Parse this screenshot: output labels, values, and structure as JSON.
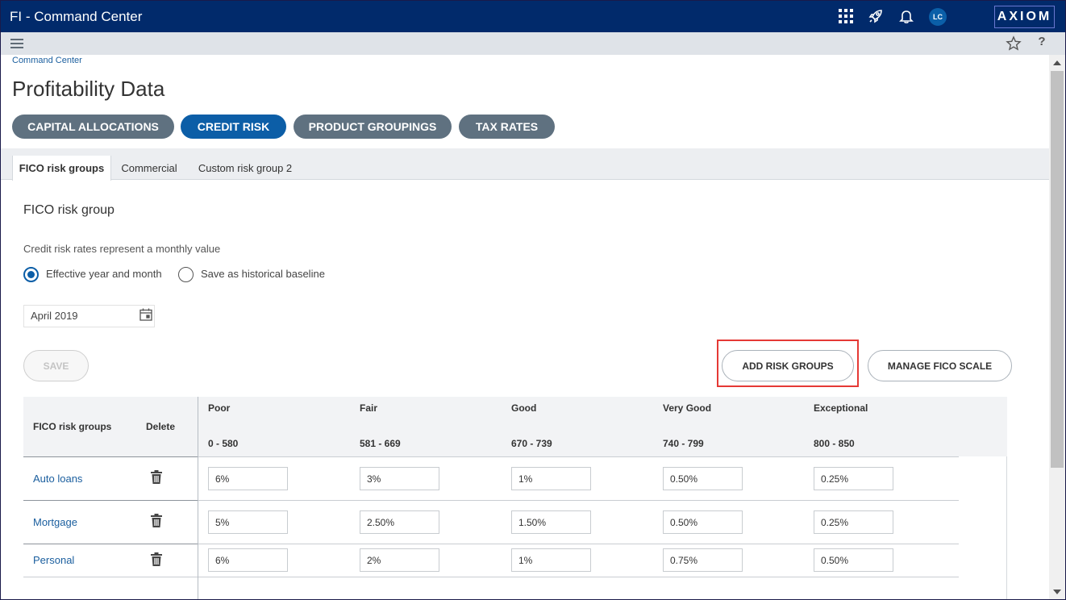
{
  "header": {
    "app_title": "FI - Command Center",
    "avatar_initials": "LC",
    "logo_text": "AXIOM",
    "icons": [
      "apps-grid-icon",
      "rocket-icon",
      "bell-icon"
    ]
  },
  "subbar": {
    "icons": [
      "hamburger-menu-icon",
      "star-icon",
      "help-icon"
    ],
    "help_glyph": "?"
  },
  "breadcrumb": "Command Center",
  "page_title": "Profitability Data",
  "pills": [
    {
      "label": "CAPITAL ALLOCATIONS",
      "active": false
    },
    {
      "label": "CREDIT RISK",
      "active": true
    },
    {
      "label": "PRODUCT GROUPINGS",
      "active": false
    },
    {
      "label": "TAX RATES",
      "active": false
    }
  ],
  "tabs": [
    {
      "label": "FICO risk groups",
      "active": true
    },
    {
      "label": "Commercial",
      "active": false
    },
    {
      "label": "Custom risk group 2",
      "active": false
    }
  ],
  "section": {
    "title": "FICO risk group",
    "note": "Credit risk rates represent a monthly value",
    "radio_options": [
      {
        "label": "Effective year and month",
        "checked": true
      },
      {
        "label": "Save as historical baseline",
        "checked": false
      }
    ],
    "date_value": "April 2019"
  },
  "buttons": {
    "save": "SAVE",
    "add_risk_groups": "ADD RISK GROUPS",
    "manage_fico_scale": "MANAGE FICO SCALE"
  },
  "table": {
    "col_group": "FICO risk groups",
    "col_delete": "Delete",
    "columns": [
      {
        "name": "Poor",
        "range": "0 - 580"
      },
      {
        "name": "Fair",
        "range": "581 - 669"
      },
      {
        "name": "Good",
        "range": "670 - 739"
      },
      {
        "name": "Very Good",
        "range": "740 - 799"
      },
      {
        "name": "Exceptional",
        "range": "800 - 850"
      }
    ],
    "rows": [
      {
        "label": "Auto loans",
        "values": [
          "6%",
          "3%",
          "1%",
          "0.50%",
          "0.25%"
        ]
      },
      {
        "label": "Mortgage",
        "values": [
          "5%",
          "2.50%",
          "1.50%",
          "0.50%",
          "0.25%"
        ]
      },
      {
        "label": "Personal",
        "values": [
          "6%",
          "2%",
          "1%",
          "0.75%",
          "0.50%"
        ]
      }
    ]
  },
  "colors": {
    "header_bg": "#012a6b",
    "active_pill": "#0c5ea7",
    "pill": "#5f7180",
    "link": "#1a5e9e",
    "highlight": "#e53935"
  }
}
